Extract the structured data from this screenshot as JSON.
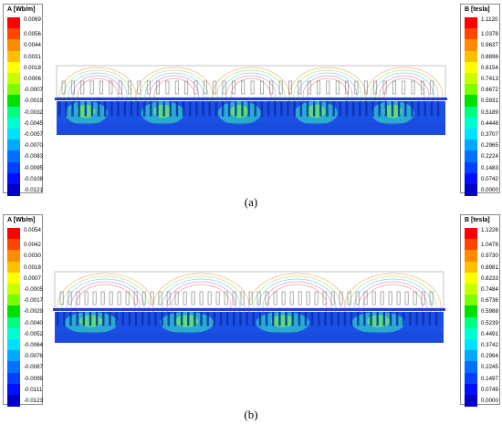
{
  "figure_a": {
    "legend_left": {
      "title": "A [Wb/m]",
      "labels": [
        "0.0069",
        "0.0056",
        "0.0044",
        "0.0031",
        "0.0018",
        "0.0006",
        "-0.0007",
        "-0.0019",
        "-0.0032",
        "-0.0045",
        "-0.0057",
        "-0.0070",
        "-0.0083",
        "-0.0095",
        "-0.0108",
        "-0.0121"
      ]
    },
    "legend_right": {
      "title": "B [tesla]",
      "labels": [
        "1.1120",
        "1.0378",
        "0.9637",
        "0.8896",
        "0.8154",
        "0.7413",
        "0.6672",
        "0.5931",
        "0.5189",
        "0.4448",
        "0.3707",
        "0.2965",
        "0.2224",
        "0.1483",
        "0.0742",
        "0.0000"
      ]
    },
    "caption": "(a)"
  },
  "figure_b": {
    "legend_left": {
      "title": "A [Wb/m]",
      "labels": [
        "0.0054",
        "0.0042",
        "0.0030",
        "0.0018",
        "0.0007",
        "-0.0005",
        "-0.0017",
        "-0.0029",
        "-0.0040",
        "-0.0052",
        "-0.0064",
        "-0.0076",
        "-0.0087",
        "-0.0099",
        "-0.0111",
        "-0.0123"
      ]
    },
    "legend_right": {
      "title": "B [tesla]",
      "labels": [
        "1.1226",
        "1.0478",
        "0.9730",
        "0.8981",
        "0.8233",
        "0.7484",
        "0.6736",
        "0.5988",
        "0.5239",
        "0.4491",
        "0.3742",
        "0.2994",
        "0.2245",
        "0.1497",
        "0.0749",
        "0.0000"
      ]
    },
    "caption": "(b)"
  },
  "colors": {
    "scale": [
      "#ff0000",
      "#ff4500",
      "#ff8c00",
      "#ffc000",
      "#ffff00",
      "#c8ff00",
      "#7cff00",
      "#00e000",
      "#00ff80",
      "#00ffd0",
      "#00e0ff",
      "#00a8ff",
      "#0070ff",
      "#0040ff",
      "#0010ff",
      "#0000c8"
    ],
    "steel_base": "#1b50e6",
    "steel_mid": "#2a8ad8",
    "rail": "#1f3fd0"
  }
}
